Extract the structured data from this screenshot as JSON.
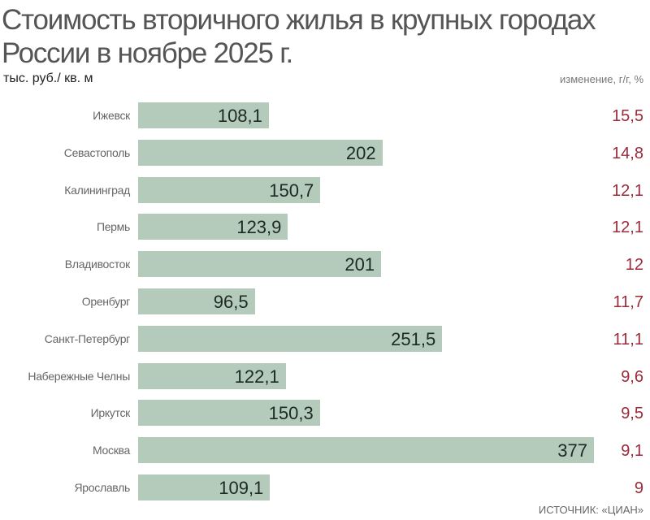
{
  "title": {
    "line1": "Стоимость вторичного жилья в крупных городах",
    "line2": "России в ноябре 2025 г."
  },
  "unit_label": "тыс. руб./ кв. м",
  "change_label": "изменение, г/г, %",
  "source": "ИСТОЧНИК: «ЦИАН»",
  "colors": {
    "bar": "#b4cbbb",
    "change_text": "#9b2a3a",
    "value_text": "#1c2a22"
  },
  "rows": [
    {
      "city": "Ижевск",
      "value": "108,1",
      "change": "15,5"
    },
    {
      "city": "Севастополь",
      "value": "202",
      "change": "14,8"
    },
    {
      "city": "Калининград",
      "value": "150,7",
      "change": "12,1"
    },
    {
      "city": "Пермь",
      "value": "123,9",
      "change": "12,1"
    },
    {
      "city": "Владивосток",
      "value": "201",
      "change": "12"
    },
    {
      "city": "Оренбург",
      "value": "96,5",
      "change": "11,7"
    },
    {
      "city": "Санкт-Петербург",
      "value": "251,5",
      "change": "11,1"
    },
    {
      "city": "Набережные Челны",
      "value": "122,1",
      "change": "9,6"
    },
    {
      "city": "Иркутск",
      "value": "150,3",
      "change": "9,5"
    },
    {
      "city": "Москва",
      "value": "377",
      "change": "9,1"
    },
    {
      "city": "Ярославль",
      "value": "109,1",
      "change": "9"
    }
  ],
  "chart_data": {
    "type": "bar",
    "orientation": "horizontal",
    "title": "Стоимость вторичного жилья в крупных городах России в ноябре 2025 г.",
    "xlabel": "тыс. руб./ кв. м",
    "ylabel": "",
    "categories": [
      "Ижевск",
      "Севастополь",
      "Калининград",
      "Пермь",
      "Владивосток",
      "Оренбург",
      "Санкт-Петербург",
      "Набережные Челны",
      "Иркутск",
      "Москва",
      "Ярославль"
    ],
    "series": [
      {
        "name": "Стоимость, тыс. руб./кв. м",
        "values": [
          108.1,
          202,
          150.7,
          123.9,
          201,
          96.5,
          251.5,
          122.1,
          150.3,
          377,
          109.1
        ]
      },
      {
        "name": "изменение, г/г, %",
        "values": [
          15.5,
          14.8,
          12.1,
          12.1,
          12,
          11.7,
          11.1,
          9.6,
          9.5,
          9.1,
          9
        ]
      }
    ],
    "xlim": [
      0,
      377
    ],
    "grid": false,
    "legend": "none",
    "annotations": [
      "ИСТОЧНИК: «ЦИАН»"
    ]
  }
}
